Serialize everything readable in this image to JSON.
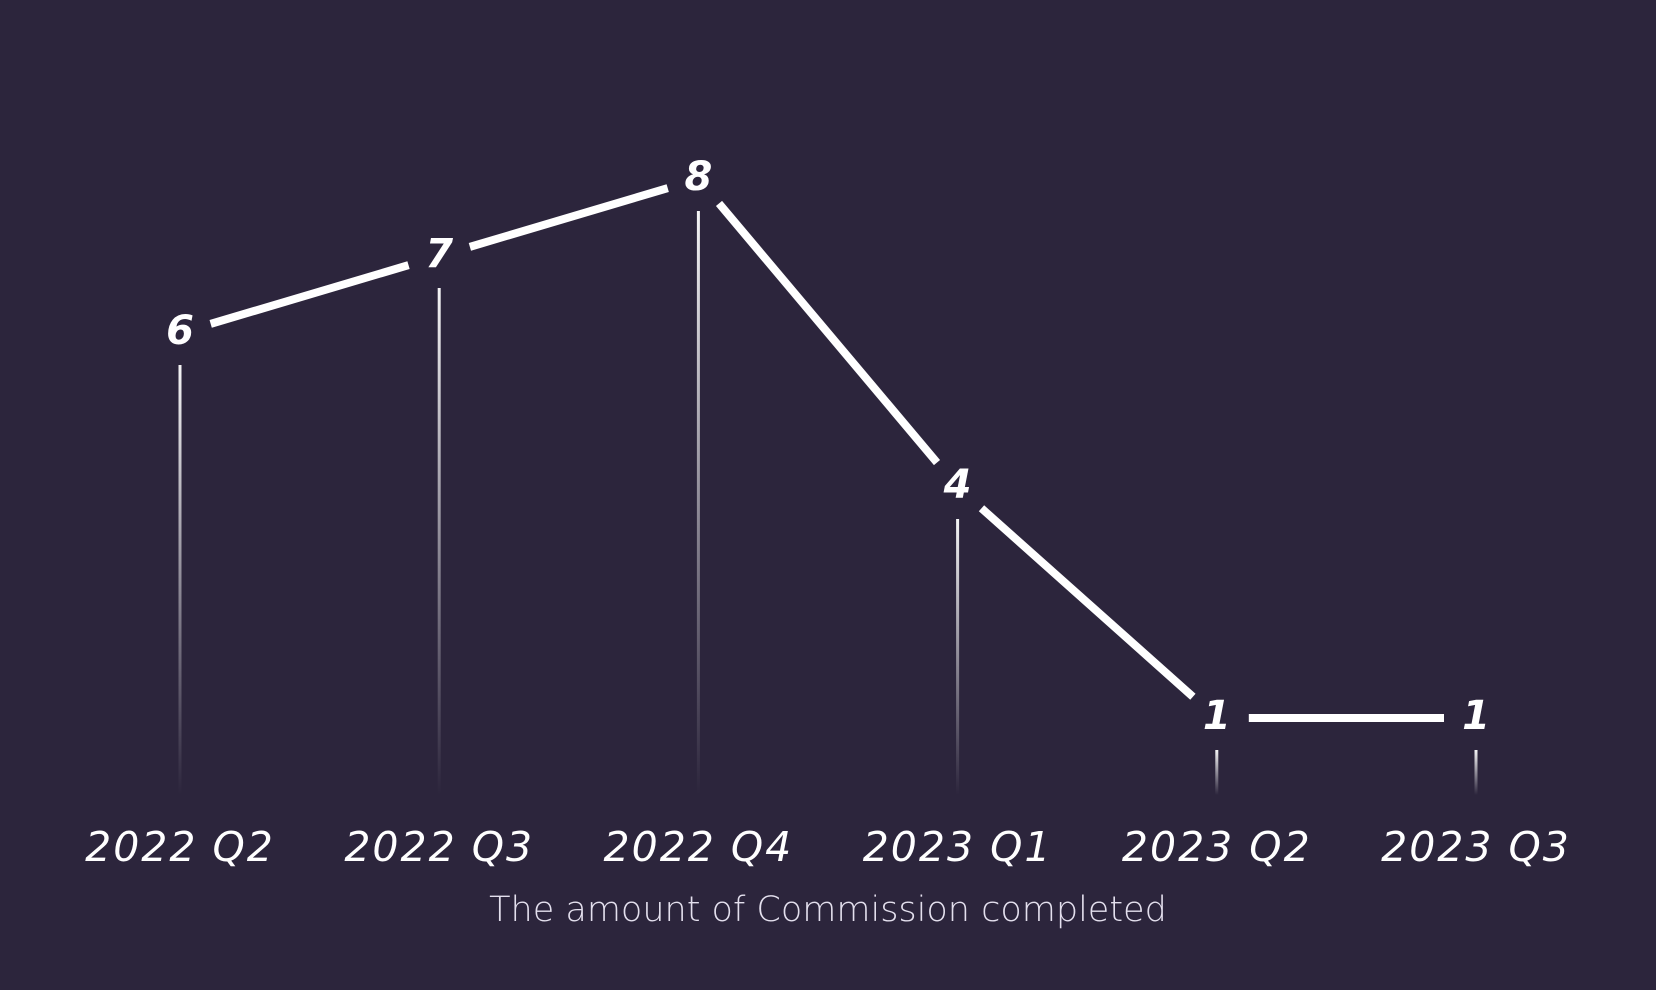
{
  "chart_data": {
    "type": "line",
    "categories": [
      "2022 Q2",
      "2022 Q3",
      "2022 Q4",
      "2023 Q1",
      "2023 Q2",
      "2023 Q3"
    ],
    "values": [
      6,
      7,
      8,
      4,
      1,
      1
    ],
    "xlabel": "The amount of Commission completed",
    "ylabel": "",
    "ylim": [
      0,
      10
    ],
    "grid": false,
    "legend": "none",
    "colors": {
      "background": "#2c253c",
      "line": "#ffffff",
      "text": "#ffffff",
      "label": "#e4e0ee"
    }
  }
}
